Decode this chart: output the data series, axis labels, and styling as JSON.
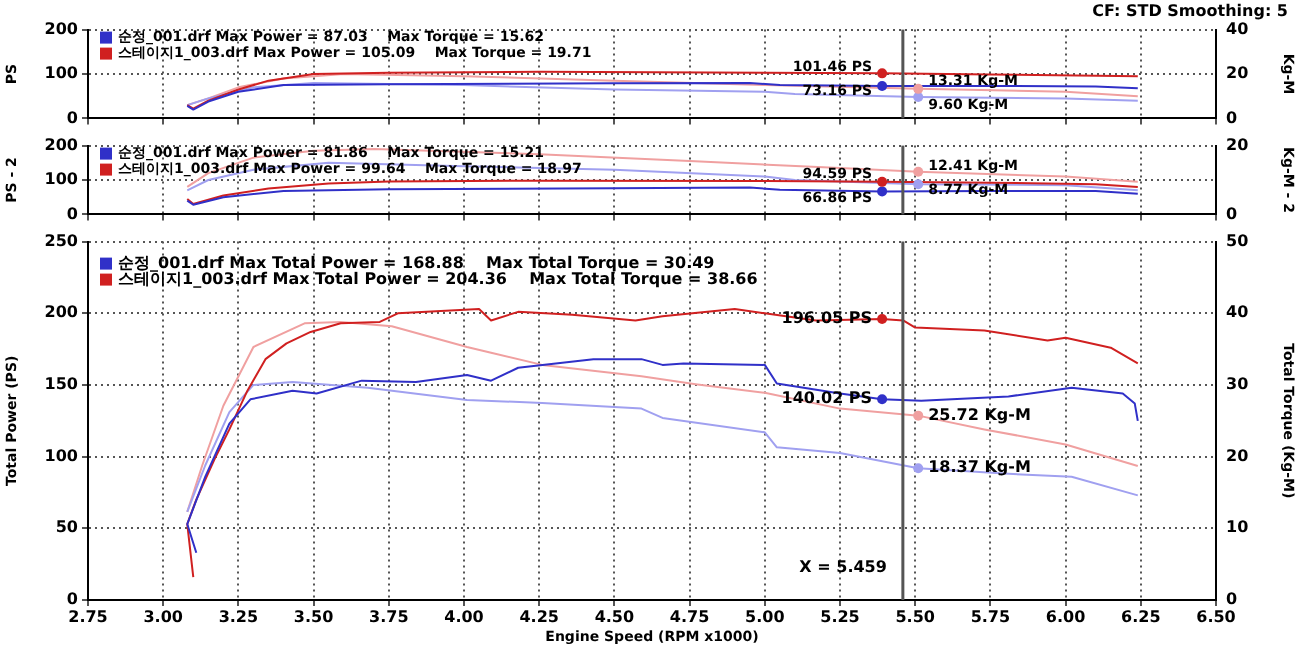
{
  "chart_data": [
    {
      "type": "line",
      "ylabel": "PS",
      "y2label": "Kg-M",
      "legend": "top left",
      "grid": true,
      "marker": "none",
      "tick_labels": "y",
      "annotations": [
        "CF: STD  Smoothing: 5"
      ],
      "xlim": [
        2.75,
        6.5
      ],
      "xticks": [
        {
          "value": 2.75,
          "label": null
        },
        {
          "value": 3,
          "label": null
        },
        {
          "value": 3.25,
          "label": null
        },
        {
          "value": 3.5,
          "label": null
        },
        {
          "value": 3.75,
          "label": null
        },
        {
          "value": 4,
          "label": null
        },
        {
          "value": 4.25,
          "label": null
        },
        {
          "value": 4.5,
          "label": null
        },
        {
          "value": 4.75,
          "label": null
        },
        {
          "value": 5,
          "label": null
        },
        {
          "value": 5.25,
          "label": null
        },
        {
          "value": 5.5,
          "label": null
        },
        {
          "value": 5.75,
          "label": null
        },
        {
          "value": 6,
          "label": null
        },
        {
          "value": 6.25,
          "label": null
        },
        {
          "value": 6.5,
          "label": null
        }
      ],
      "ylim": [
        0,
        200
      ],
      "yticks": [
        0,
        100,
        200
      ],
      "y2lim": [
        0,
        40
      ],
      "y2ticks": [
        0,
        20,
        40
      ],
      "ref_lines": [
        {
          "axis": "x",
          "value": 5.459,
          "color": "#555555"
        }
      ],
      "series": [
        {
          "name": "순정_001.drf Max Power = 87.03    Max Torque = 15.62",
          "color": "#3030c8",
          "x": [
            3.08,
            3.1,
            3.15,
            3.25,
            3.4,
            3.75,
            4.5,
            4.95,
            5.05,
            5.39,
            5.75,
            6.1,
            6.24
          ],
          "values": [
            28,
            20,
            38,
            60,
            75,
            77,
            79,
            80,
            75,
            73.16,
            73,
            72,
            68
          ],
          "value_labels": [
            null,
            null,
            null,
            null,
            null,
            null,
            null,
            null,
            null,
            "73.16 PS",
            null,
            null,
            null
          ]
        },
        {
          "name": "스테이지1_003.drf Max Power = 105.09    Max Torque = 19.71",
          "color": "#d02020",
          "x": [
            3.08,
            3.1,
            3.15,
            3.25,
            3.35,
            3.5,
            3.75,
            4.25,
            5.0,
            5.39,
            5.75,
            6.24
          ],
          "values": [
            30,
            22,
            40,
            65,
            85,
            100,
            103,
            105,
            103,
            101.46,
            99,
            95
          ],
          "value_labels": [
            null,
            null,
            null,
            null,
            null,
            null,
            null,
            null,
            null,
            "101.46 PS",
            null,
            null
          ]
        },
        {
          "color": "#a0a0f0",
          "axis": "y2",
          "x": [
            3.08,
            3.15,
            3.3,
            3.5,
            4.0,
            4.5,
            5.0,
            5.1,
            5.51,
            6.0,
            6.24
          ],
          "values": [
            6,
            9,
            14,
            16,
            15,
            13,
            12,
            11,
            9.6,
            9,
            8
          ],
          "value_labels": [
            null,
            null,
            null,
            null,
            null,
            null,
            null,
            null,
            "9.60 Kg-M",
            null,
            null
          ]
        },
        {
          "color": "#f0a0a0",
          "axis": "y2",
          "x": [
            3.08,
            3.15,
            3.25,
            3.4,
            3.6,
            4.0,
            4.5,
            5.0,
            5.51,
            6.0,
            6.24
          ],
          "values": [
            6,
            9,
            14,
            18,
            20,
            19,
            17,
            15,
            13.31,
            12,
            10
          ],
          "value_labels": [
            null,
            null,
            null,
            null,
            null,
            null,
            null,
            null,
            "13.31 Kg-M",
            null,
            null
          ]
        }
      ]
    },
    {
      "type": "line",
      "ylabel": "PS - 2",
      "y2label": "Kg-M - 2",
      "legend": "top left",
      "grid": true,
      "marker": "none",
      "tick_labels": "y",
      "xlim": [
        2.75,
        6.5
      ],
      "xticks": [
        {
          "value": 2.75,
          "label": null
        },
        {
          "value": 3,
          "label": null
        },
        {
          "value": 3.25,
          "label": null
        },
        {
          "value": 3.5,
          "label": null
        },
        {
          "value": 3.75,
          "label": null
        },
        {
          "value": 4,
          "label": null
        },
        {
          "value": 4.25,
          "label": null
        },
        {
          "value": 4.5,
          "label": null
        },
        {
          "value": 4.75,
          "label": null
        },
        {
          "value": 5,
          "label": null
        },
        {
          "value": 5.25,
          "label": null
        },
        {
          "value": 5.5,
          "label": null
        },
        {
          "value": 5.75,
          "label": null
        },
        {
          "value": 6,
          "label": null
        },
        {
          "value": 6.25,
          "label": null
        },
        {
          "value": 6.5,
          "label": null
        }
      ],
      "ylim": [
        0,
        200
      ],
      "yticks": [
        0,
        100,
        200
      ],
      "y2lim": [
        0,
        20
      ],
      "y2ticks": [
        0,
        20
      ],
      "ref_lines": [
        {
          "axis": "x",
          "value": 5.459,
          "color": "#555555"
        }
      ],
      "series": [
        {
          "name": "순정_001.drf Max Power = 81.86    Max Torque = 15.21",
          "color": "#3030c8",
          "x": [
            3.08,
            3.1,
            3.2,
            3.4,
            3.75,
            4.5,
            4.95,
            5.05,
            5.39,
            5.75,
            6.1,
            6.24
          ],
          "values": [
            40,
            28,
            50,
            68,
            73,
            76,
            78,
            72,
            66.86,
            68,
            68,
            60
          ],
          "value_labels": [
            null,
            null,
            null,
            null,
            null,
            null,
            null,
            null,
            "66.86 PS",
            null,
            null,
            null
          ]
        },
        {
          "name": "스테이지1_003.drf Max Power = 99.64    Max Torque = 18.97",
          "color": "#d02020",
          "x": [
            3.08,
            3.1,
            3.2,
            3.35,
            3.55,
            3.75,
            4.25,
            5.0,
            5.39,
            5.75,
            6.1,
            6.24
          ],
          "values": [
            45,
            30,
            55,
            75,
            90,
            96,
            98,
            97,
            94.59,
            92,
            88,
            80
          ],
          "value_labels": [
            null,
            null,
            null,
            null,
            null,
            null,
            null,
            null,
            "94.59 PS",
            null,
            null,
            null
          ]
        },
        {
          "color": "#a0a0f0",
          "axis": "y2",
          "x": [
            3.08,
            3.15,
            3.3,
            3.55,
            4.0,
            4.5,
            5.0,
            5.1,
            5.51,
            6.0,
            6.24
          ],
          "values": [
            7,
            10,
            13,
            15,
            14,
            13,
            11,
            10,
            8.77,
            8.5,
            7
          ],
          "value_labels": [
            null,
            null,
            null,
            null,
            null,
            null,
            null,
            null,
            "8.77 Kg-M",
            null,
            null
          ]
        },
        {
          "color": "#f0a0a0",
          "axis": "y2",
          "x": [
            3.08,
            3.15,
            3.3,
            3.5,
            3.7,
            4.25,
            4.75,
            5.25,
            5.51,
            6.0,
            6.24
          ],
          "values": [
            8,
            12,
            16.5,
            18.5,
            19,
            17.5,
            15.5,
            13.5,
            12.41,
            11,
            9.5
          ],
          "value_labels": [
            null,
            null,
            null,
            null,
            null,
            null,
            null,
            null,
            "12.41 Kg-M",
            null,
            null
          ]
        }
      ]
    },
    {
      "type": "line",
      "xlabel": "Engine Speed (RPM x1000)",
      "ylabel": "Total Power (PS)",
      "y2label": "Total Torque (Kg-M)",
      "legend": "top left",
      "grid": true,
      "marker": "none",
      "xlim": [
        2.75,
        6.5
      ],
      "xticks": [
        {
          "value": 2.75,
          "label": "2.75"
        },
        {
          "value": 3,
          "label": "3.00"
        },
        {
          "value": 3.25,
          "label": "3.25"
        },
        {
          "value": 3.5,
          "label": "3.50"
        },
        {
          "value": 3.75,
          "label": "3.75"
        },
        {
          "value": 4,
          "label": "4.00"
        },
        {
          "value": 4.25,
          "label": "4.25"
        },
        {
          "value": 4.5,
          "label": "4.50"
        },
        {
          "value": 4.75,
          "label": "4.75"
        },
        {
          "value": 5,
          "label": "5.00"
        },
        {
          "value": 5.25,
          "label": "5.25"
        },
        {
          "value": 5.5,
          "label": "5.50"
        },
        {
          "value": 5.75,
          "label": "5.75"
        },
        {
          "value": 6,
          "label": "6.00"
        },
        {
          "value": 6.25,
          "label": "6.25"
        },
        {
          "value": 6.5,
          "label": "6.50"
        }
      ],
      "ylim": [
        0,
        250
      ],
      "yticks": [
        0,
        50,
        100,
        150,
        200,
        250
      ],
      "y2lim": [
        0,
        50
      ],
      "y2ticks": [
        0,
        10,
        20,
        30,
        40,
        50
      ],
      "ref_lines": [
        {
          "axis": "x",
          "value": 5.459,
          "label": "X = 5.459",
          "color": "#555555"
        }
      ],
      "series": [
        {
          "name": "순정_001.drf Max Total Power = 168.88    Max Total Torque = 30.49",
          "color": "#3030c8",
          "x": [
            3.11,
            3.08,
            3.14,
            3.22,
            3.29,
            3.43,
            3.51,
            3.66,
            3.84,
            4.01,
            4.09,
            4.18,
            4.43,
            4.59,
            4.66,
            4.73,
            5.0,
            5.04,
            5.25,
            5.39,
            5.52,
            5.81,
            6.02,
            6.19,
            6.23,
            6.24
          ],
          "values": [
            33,
            53,
            86,
            123,
            140,
            146,
            144,
            153,
            152,
            157,
            153,
            162,
            168,
            168,
            164,
            165,
            164,
            151,
            144,
            140.02,
            139,
            142,
            148,
            144,
            137,
            125
          ],
          "value_labels": [
            null,
            null,
            null,
            null,
            null,
            null,
            null,
            null,
            null,
            null,
            null,
            null,
            null,
            null,
            null,
            null,
            null,
            null,
            null,
            "140.02 PS",
            null,
            null,
            null,
            null,
            null,
            null
          ]
        },
        {
          "name": "스테이지1_003.drf Max Total Power = 204.36    Max Total Torque = 38.66",
          "color": "#d02020",
          "x": [
            3.1,
            3.08,
            3.11,
            3.17,
            3.22,
            3.28,
            3.34,
            3.41,
            3.49,
            3.59,
            3.72,
            3.78,
            4.05,
            4.09,
            4.18,
            4.36,
            4.57,
            4.66,
            4.9,
            5.0,
            5.17,
            5.39,
            5.46,
            5.5,
            5.73,
            5.94,
            6.0,
            6.15,
            6.24
          ],
          "values": [
            16,
            53,
            70,
            98,
            119,
            146,
            168,
            179,
            187,
            193,
            194,
            200,
            203,
            195,
            201,
            199,
            195,
            198,
            203,
            200,
            195,
            196.05,
            195,
            190,
            188,
            181,
            183,
            176,
            165
          ],
          "value_labels": [
            null,
            null,
            null,
            null,
            null,
            null,
            null,
            null,
            null,
            null,
            null,
            null,
            null,
            null,
            null,
            null,
            null,
            null,
            null,
            null,
            null,
            "196.05 PS",
            null,
            null,
            null,
            null,
            null,
            null,
            null
          ]
        },
        {
          "color": "#a0a0f0",
          "axis": "y2",
          "x": [
            3.08,
            3.14,
            3.22,
            3.3,
            3.43,
            3.68,
            4.01,
            4.26,
            4.59,
            4.66,
            5.0,
            5.04,
            5.25,
            5.51,
            5.81,
            6.02,
            6.24
          ],
          "values": [
            12.3,
            18.8,
            26.2,
            30.0,
            30.4,
            29.6,
            27.9,
            27.5,
            26.7,
            25.4,
            23.4,
            21.3,
            20.5,
            18.37,
            17.6,
            17.2,
            14.6
          ],
          "value_labels": [
            null,
            null,
            null,
            null,
            null,
            null,
            null,
            null,
            null,
            null,
            null,
            null,
            null,
            "18.37 Kg-M",
            null,
            null,
            null
          ]
        },
        {
          "color": "#f0a0a0",
          "axis": "y2",
          "x": [
            3.08,
            3.13,
            3.2,
            3.3,
            3.47,
            3.59,
            3.76,
            4.01,
            4.09,
            4.26,
            4.59,
            4.77,
            5.0,
            5.25,
            5.51,
            5.73,
            6.0,
            6.24
          ],
          "values": [
            12.3,
            18.8,
            27.1,
            35.3,
            38.6,
            38.8,
            38.2,
            35.3,
            34.5,
            32.8,
            31.2,
            30.1,
            28.9,
            26.7,
            25.72,
            23.8,
            21.7,
            18.7
          ],
          "value_labels": [
            null,
            null,
            null,
            null,
            null,
            null,
            null,
            null,
            null,
            null,
            null,
            null,
            null,
            null,
            "25.72 Kg-M",
            null,
            null,
            null
          ]
        }
      ]
    }
  ]
}
